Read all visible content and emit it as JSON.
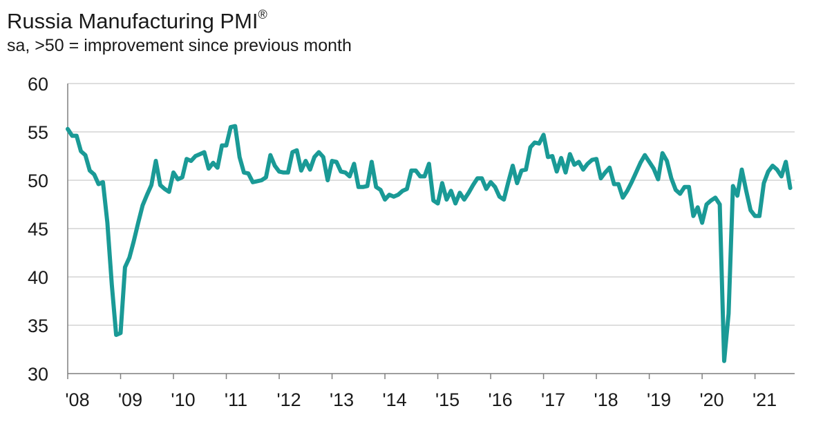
{
  "title": "Russia Manufacturing PMI",
  "title_mark": "®",
  "subtitle": "sa, >50 = improvement since previous month",
  "colors": {
    "line": "#1a9a96",
    "grid": "#d4d4d4",
    "axis": "#7f7f7f",
    "text": "#1a1a1a"
  },
  "chart_data": {
    "type": "line",
    "title": "Russia Manufacturing PMI",
    "subtitle": "sa, >50 = improvement since previous month",
    "xlabel": "",
    "ylabel": "",
    "ylim": [
      30,
      60
    ],
    "yticks": [
      30,
      35,
      40,
      45,
      50,
      55,
      60
    ],
    "xticks": [
      "'08",
      "'09",
      "'10",
      "'11",
      "'12",
      "'13",
      "'14",
      "'15",
      "'16",
      "'17",
      "'18",
      "'19",
      "'20",
      "'21"
    ],
    "x_start": "2008-01",
    "x_end": "2021-06",
    "grid": true,
    "legend": "none",
    "series": [
      {
        "values": [
          55.3,
          54.6,
          54.6,
          53.0,
          52.6,
          51.0,
          50.6,
          49.6,
          49.8,
          45.6,
          39.2,
          34.0,
          34.2,
          41.0,
          42.0,
          43.7,
          45.6,
          47.4,
          48.5,
          49.5,
          52.0,
          49.5,
          49.1,
          48.8,
          50.8,
          50.1,
          50.3,
          52.2,
          52.0,
          52.5,
          52.7,
          52.9,
          51.2,
          51.8,
          51.3,
          53.6,
          53.6,
          55.5,
          55.6,
          52.4,
          50.8,
          50.7,
          49.8,
          49.9,
          50.0,
          50.3,
          52.6,
          51.5,
          50.9,
          50.8,
          50.8,
          52.9,
          53.1,
          51.0,
          52.0,
          51.1,
          52.4,
          52.9,
          52.4,
          50.0,
          52.0,
          51.9,
          50.9,
          50.8,
          50.4,
          51.7,
          49.3,
          49.3,
          49.4,
          51.9,
          49.3,
          49.0,
          48.0,
          48.5,
          48.3,
          48.5,
          48.9,
          49.1,
          51.0,
          51.0,
          50.4,
          50.4,
          51.7,
          47.9,
          47.6,
          49.7,
          48.0,
          48.9,
          47.6,
          48.7,
          48.0,
          48.7,
          49.5,
          50.2,
          50.2,
          49.1,
          49.8,
          49.3,
          48.3,
          48.0,
          49.8,
          51.5,
          49.7,
          51.0,
          51.1,
          53.4,
          53.9,
          53.8,
          54.7,
          52.4,
          52.5,
          50.9,
          52.3,
          50.8,
          52.7,
          51.6,
          51.9,
          51.1,
          51.7,
          52.1,
          52.2,
          50.2,
          50.8,
          51.3,
          49.6,
          49.6,
          48.2,
          48.9,
          49.8,
          50.8,
          51.8,
          52.6,
          51.9,
          51.2,
          50.1,
          52.8,
          52.0,
          50.2,
          49.0,
          48.6,
          49.3,
          49.3,
          46.3,
          47.2,
          45.6,
          47.5,
          47.9,
          48.2,
          47.5,
          31.3,
          36.2,
          49.4,
          48.4,
          51.1,
          48.9,
          46.9,
          46.3,
          46.3,
          49.7,
          50.9,
          51.5,
          51.1,
          50.4,
          51.9,
          49.2
        ]
      }
    ]
  }
}
